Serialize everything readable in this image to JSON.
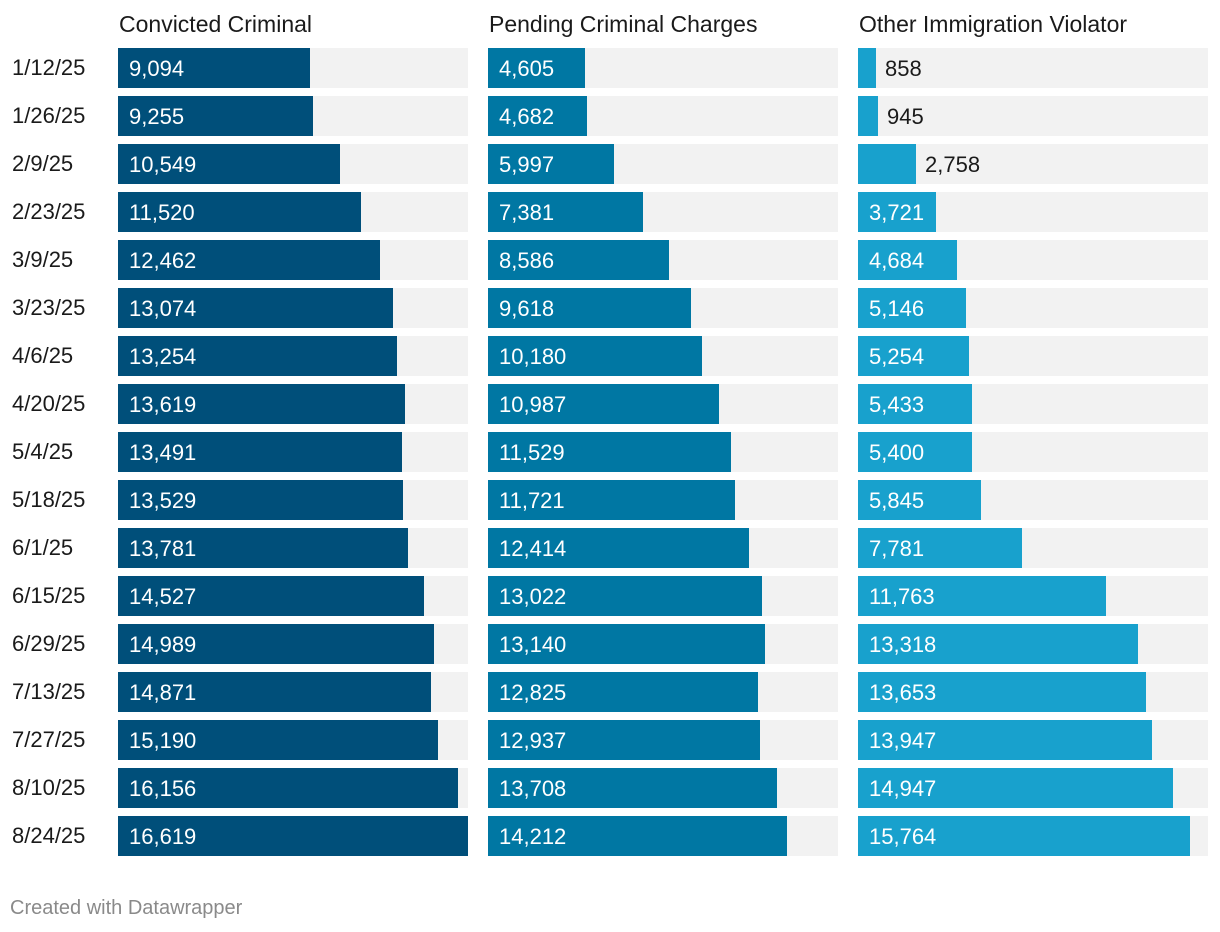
{
  "footer": "Created with Datawrapper",
  "colors": {
    "background_bar": "#f2f2f2",
    "series": [
      "#004f7a",
      "#0077a3",
      "#18a1cd"
    ],
    "label_inside": "#ffffff",
    "label_outside": "#1a1a1a"
  },
  "chart_data": {
    "type": "bar",
    "orientation": "horizontal",
    "layout": "small-multiples",
    "categories": [
      "1/12/25",
      "1/26/25",
      "2/9/25",
      "2/23/25",
      "3/9/25",
      "3/23/25",
      "4/6/25",
      "4/20/25",
      "5/4/25",
      "5/18/25",
      "6/1/25",
      "6/15/25",
      "6/29/25",
      "7/13/25",
      "7/27/25",
      "8/10/25",
      "8/24/25"
    ],
    "xlim": [
      0,
      16619
    ],
    "series": [
      {
        "name": "Convicted Criminal",
        "values": [
          9094,
          9255,
          10549,
          11520,
          12462,
          13074,
          13254,
          13619,
          13491,
          13529,
          13781,
          14527,
          14989,
          14871,
          15190,
          16156,
          16619
        ]
      },
      {
        "name": "Pending Criminal Charges",
        "values": [
          4605,
          4682,
          5997,
          7381,
          8586,
          9618,
          10180,
          10987,
          11529,
          11721,
          12414,
          13022,
          13140,
          12825,
          12937,
          13708,
          14212
        ]
      },
      {
        "name": "Other Immigration Violator",
        "values": [
          858,
          945,
          2758,
          3721,
          4684,
          5146,
          5254,
          5433,
          5400,
          5845,
          7781,
          11763,
          13318,
          13653,
          13947,
          14947,
          15764
        ]
      }
    ]
  }
}
